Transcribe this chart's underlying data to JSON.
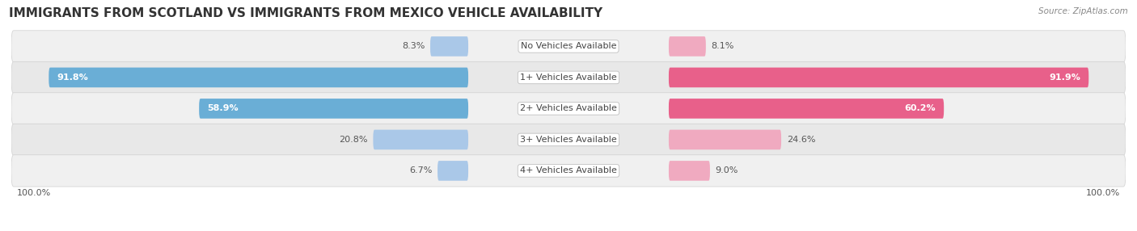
{
  "title": "IMMIGRANTS FROM SCOTLAND VS IMMIGRANTS FROM MEXICO VEHICLE AVAILABILITY",
  "source": "Source: ZipAtlas.com",
  "categories": [
    "No Vehicles Available",
    "1+ Vehicles Available",
    "2+ Vehicles Available",
    "3+ Vehicles Available",
    "4+ Vehicles Available"
  ],
  "scotland_values": [
    8.3,
    91.8,
    58.9,
    20.8,
    6.7
  ],
  "mexico_values": [
    8.1,
    91.9,
    60.2,
    24.6,
    9.0
  ],
  "scotland_color_large": "#6aaed6",
  "scotland_color_small": "#aac8e8",
  "mexico_color_large": "#e8608a",
  "mexico_color_small": "#f0aac0",
  "row_bg_color_odd": "#f0f0f0",
  "row_bg_color_even": "#e8e8e8",
  "scotland_label": "Immigrants from Scotland",
  "mexico_label": "Immigrants from Mexico",
  "title_fontsize": 11,
  "label_fontsize": 8.5,
  "tick_fontsize": 8,
  "bar_height": 0.62,
  "figsize": [
    14.06,
    2.86
  ],
  "dpi": 100,
  "large_threshold": 30
}
